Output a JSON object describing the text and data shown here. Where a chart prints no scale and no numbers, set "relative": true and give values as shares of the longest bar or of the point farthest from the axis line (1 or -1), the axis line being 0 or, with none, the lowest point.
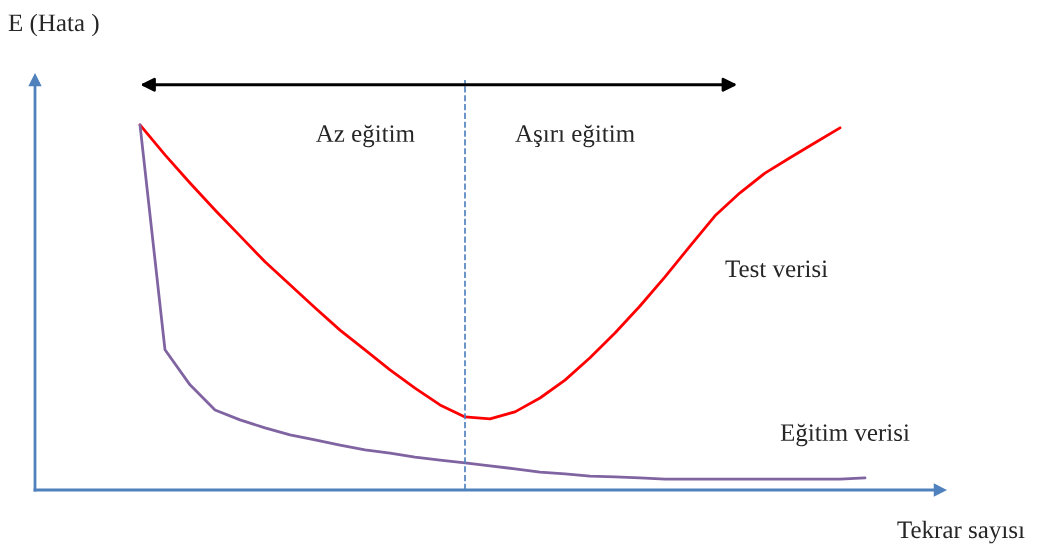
{
  "chart_data": {
    "type": "line",
    "relative": true,
    "xlabel": "Tekrar sayısı",
    "ylabel": "E (Hata )",
    "categories": [
      null,
      null,
      null,
      null,
      null,
      null,
      null,
      null,
      null,
      null,
      null,
      null,
      null,
      null,
      null,
      null,
      null,
      null,
      null,
      null,
      null,
      null,
      null,
      null,
      null,
      null,
      null,
      null,
      null,
      null
    ],
    "series": [
      {
        "name": "Test verisi",
        "color": "#ff0000",
        "values": [
          1.0,
          0.918,
          0.841,
          0.767,
          0.696,
          0.625,
          0.562,
          0.499,
          0.438,
          0.384,
          0.329,
          0.279,
          0.233,
          0.2,
          0.195,
          0.214,
          0.252,
          0.301,
          0.362,
          0.43,
          0.504,
          0.584,
          0.668,
          0.751,
          0.814,
          0.868,
          0.91,
          0.951,
          0.992,
          null
        ]
      },
      {
        "name": "Eğitim verisi",
        "color": "#8064a2",
        "values": [
          1.0,
          0.384,
          0.288,
          0.219,
          0.192,
          0.17,
          0.151,
          0.137,
          0.123,
          0.11,
          0.101,
          0.09,
          0.082,
          0.074,
          0.066,
          0.058,
          0.049,
          0.044,
          0.038,
          0.036,
          0.033,
          0.03,
          0.03,
          0.03,
          0.03,
          0.03,
          0.03,
          0.03,
          0.03,
          0.033
        ]
      }
    ],
    "annotations": [
      "Az eğitim",
      "Aşırı eğitim"
    ],
    "legend": false,
    "marker": "none",
    "line_style": "solid"
  }
}
